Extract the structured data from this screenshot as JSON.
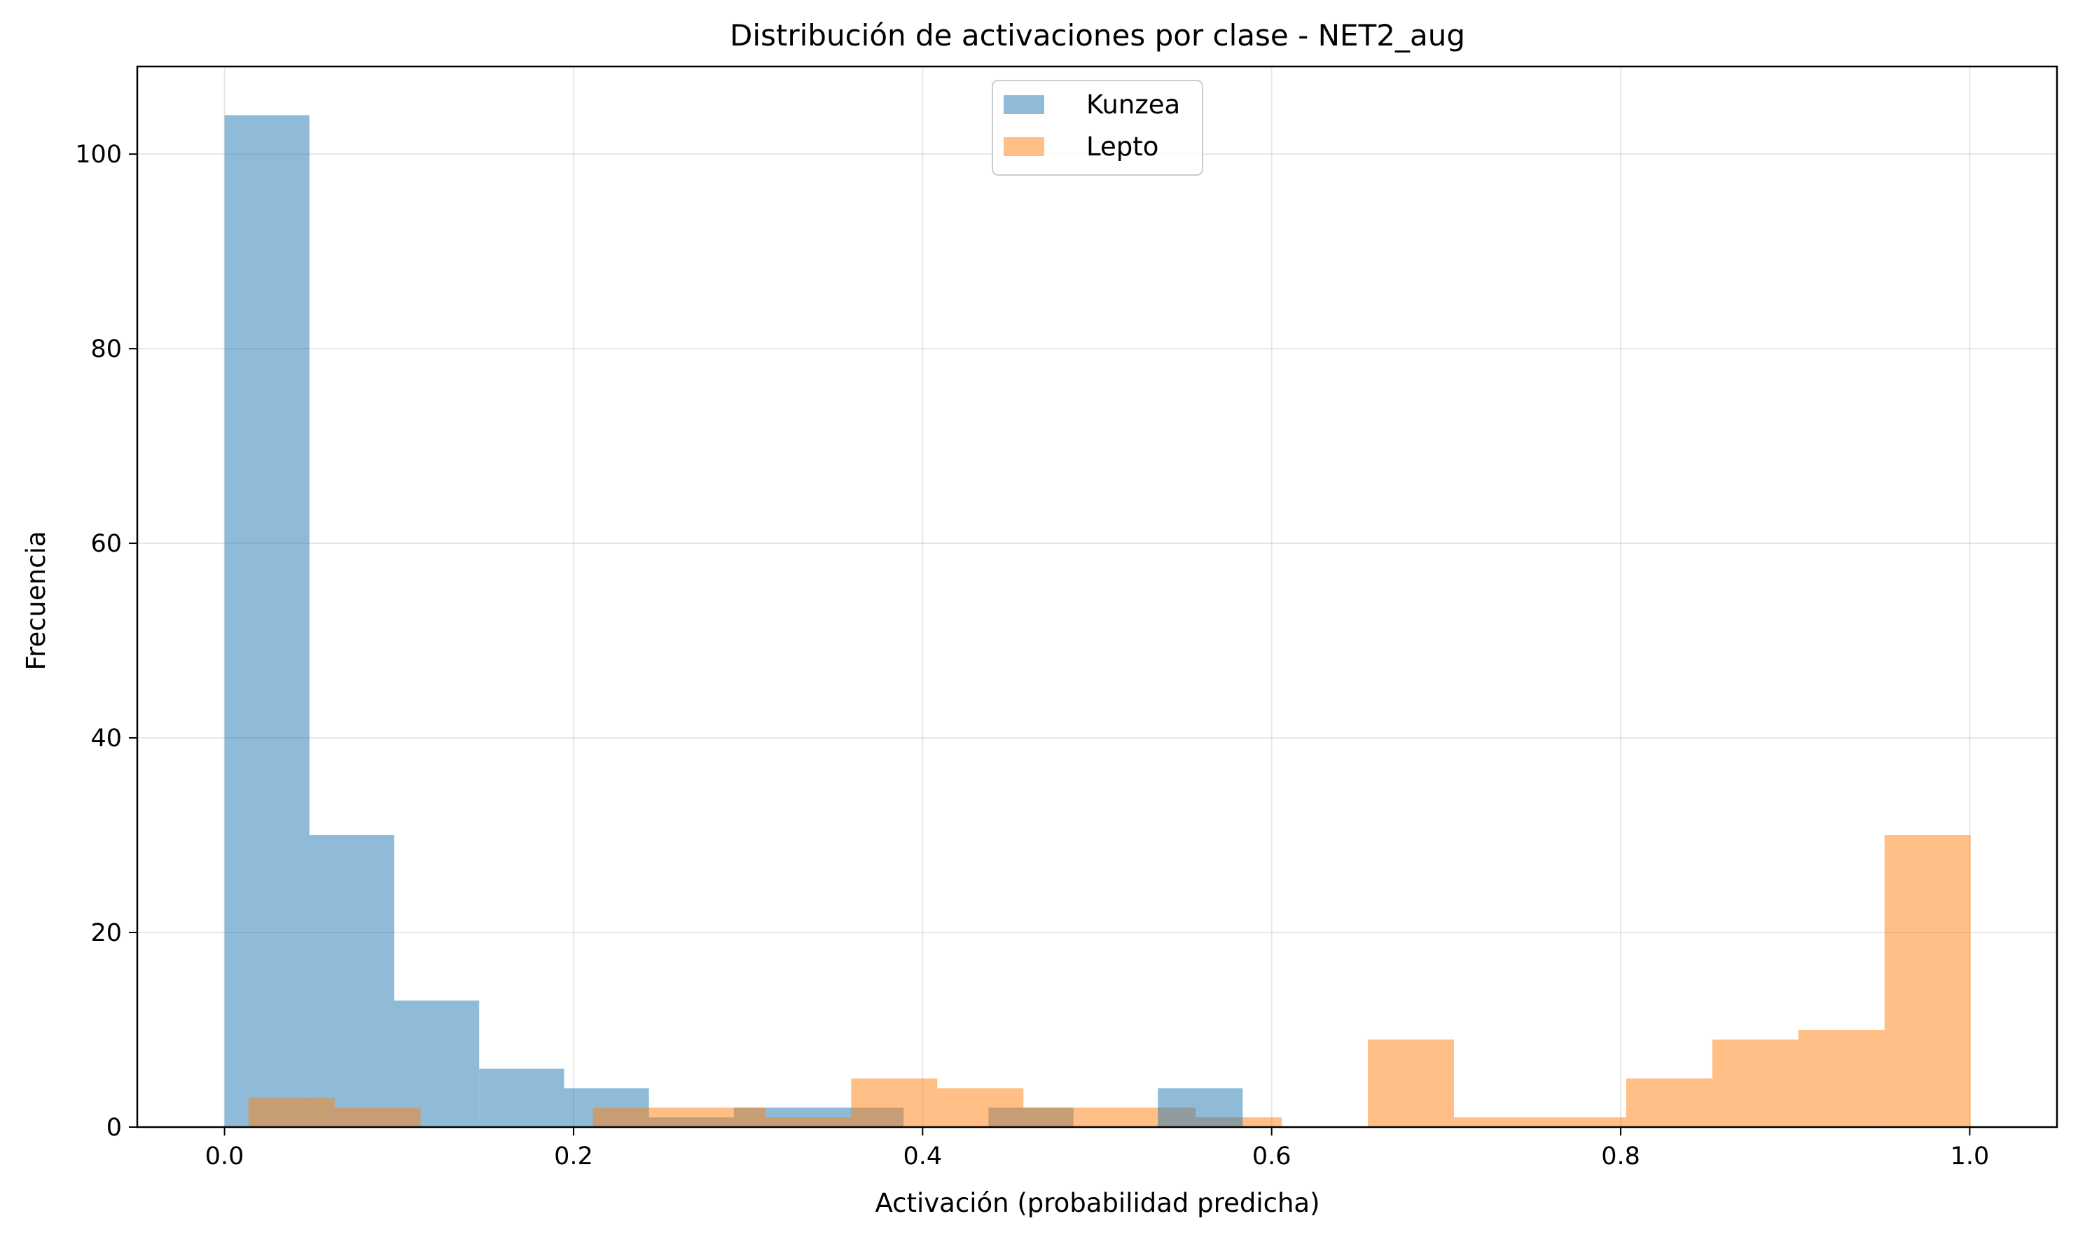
{
  "chart_data": {
    "type": "histogram",
    "title": "Distribución de activaciones por clase - NET2_aug",
    "xlabel": "Activación (probabilidad predicha)",
    "ylabel": "Frecuencia",
    "xlim": [
      -0.05,
      1.05
    ],
    "ylim": [
      0,
      109
    ],
    "xticks": [
      0.0,
      0.2,
      0.4,
      0.6,
      0.8,
      1.0
    ],
    "xtick_labels": [
      "0.0",
      "0.2",
      "0.4",
      "0.6",
      "0.8",
      "1.0"
    ],
    "yticks": [
      0,
      20,
      40,
      60,
      80,
      100
    ],
    "ytick_labels": [
      "0",
      "20",
      "40",
      "60",
      "80",
      "100"
    ],
    "grid": true,
    "legend_position": "top-center",
    "series": [
      {
        "name": "Kunzea",
        "color": "#1f77b4",
        "opacity": 0.5,
        "bin_start": 0.0,
        "bin_width": 0.04864,
        "values": [
          104,
          30,
          13,
          6,
          4,
          1,
          2,
          2,
          0,
          2,
          0,
          0,
          0,
          0,
          0,
          0,
          0,
          0,
          0,
          0
        ]
      },
      {
        "name": "Lepto",
        "color": "#ff7f0e",
        "opacity": 0.5,
        "bin_start": 0.0137,
        "bin_width": 0.04934,
        "values": [
          3,
          2,
          0,
          0,
          2,
          2,
          1,
          5,
          4,
          2,
          2,
          1,
          0,
          9,
          1,
          1,
          5,
          9,
          10,
          30
        ]
      }
    ],
    "extra_bars": [
      {
        "series": "Kunzea",
        "x0": 0.5348,
        "x1": 0.5834,
        "value": 4
      }
    ]
  }
}
